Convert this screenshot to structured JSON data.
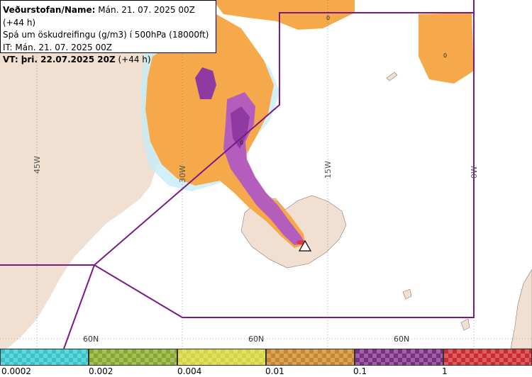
{
  "header": {
    "line1_bold": "Veðurstofan/Name:",
    "line1_rest": " Mán. 21. 07. 2025 00Z (+44 h)",
    "line2": "Spá um öskudreifingu (g/m3) í 500hPa (18000ft)",
    "line3": "IT: Mán. 21. 07. 2025 00Z",
    "line4_bold": "VT: þri. 22.07.2025 20Z",
    "line4_rest": " (+44 h)"
  },
  "map": {
    "longitude_labels": [
      "45W",
      "30W",
      "15W",
      "0W"
    ],
    "latitude_labels": [
      "60N",
      "60N",
      "60N"
    ],
    "contour_labels": [
      "0",
      "0",
      "0"
    ],
    "colors": {
      "land": "#f1e0d1",
      "sea": "#ffffff",
      "boundary": "#7b1a86",
      "ash_low": "#f6a94a",
      "ash_mid": "#b45dbd",
      "ash_high": "#8e3aa0",
      "ash_peak": "#e8343e",
      "trace": "#c7ecf6"
    },
    "volcano_icon": "triangle-volcano-icon"
  },
  "legend": {
    "colors": [
      "#33c5cc",
      "#88a82c",
      "#d6d43a",
      "#c9852a",
      "#7c2e86",
      "#cc2a2e"
    ],
    "labels": [
      "0.0002",
      "0.002",
      "0.004",
      "0.01",
      "0.1",
      "1"
    ]
  }
}
